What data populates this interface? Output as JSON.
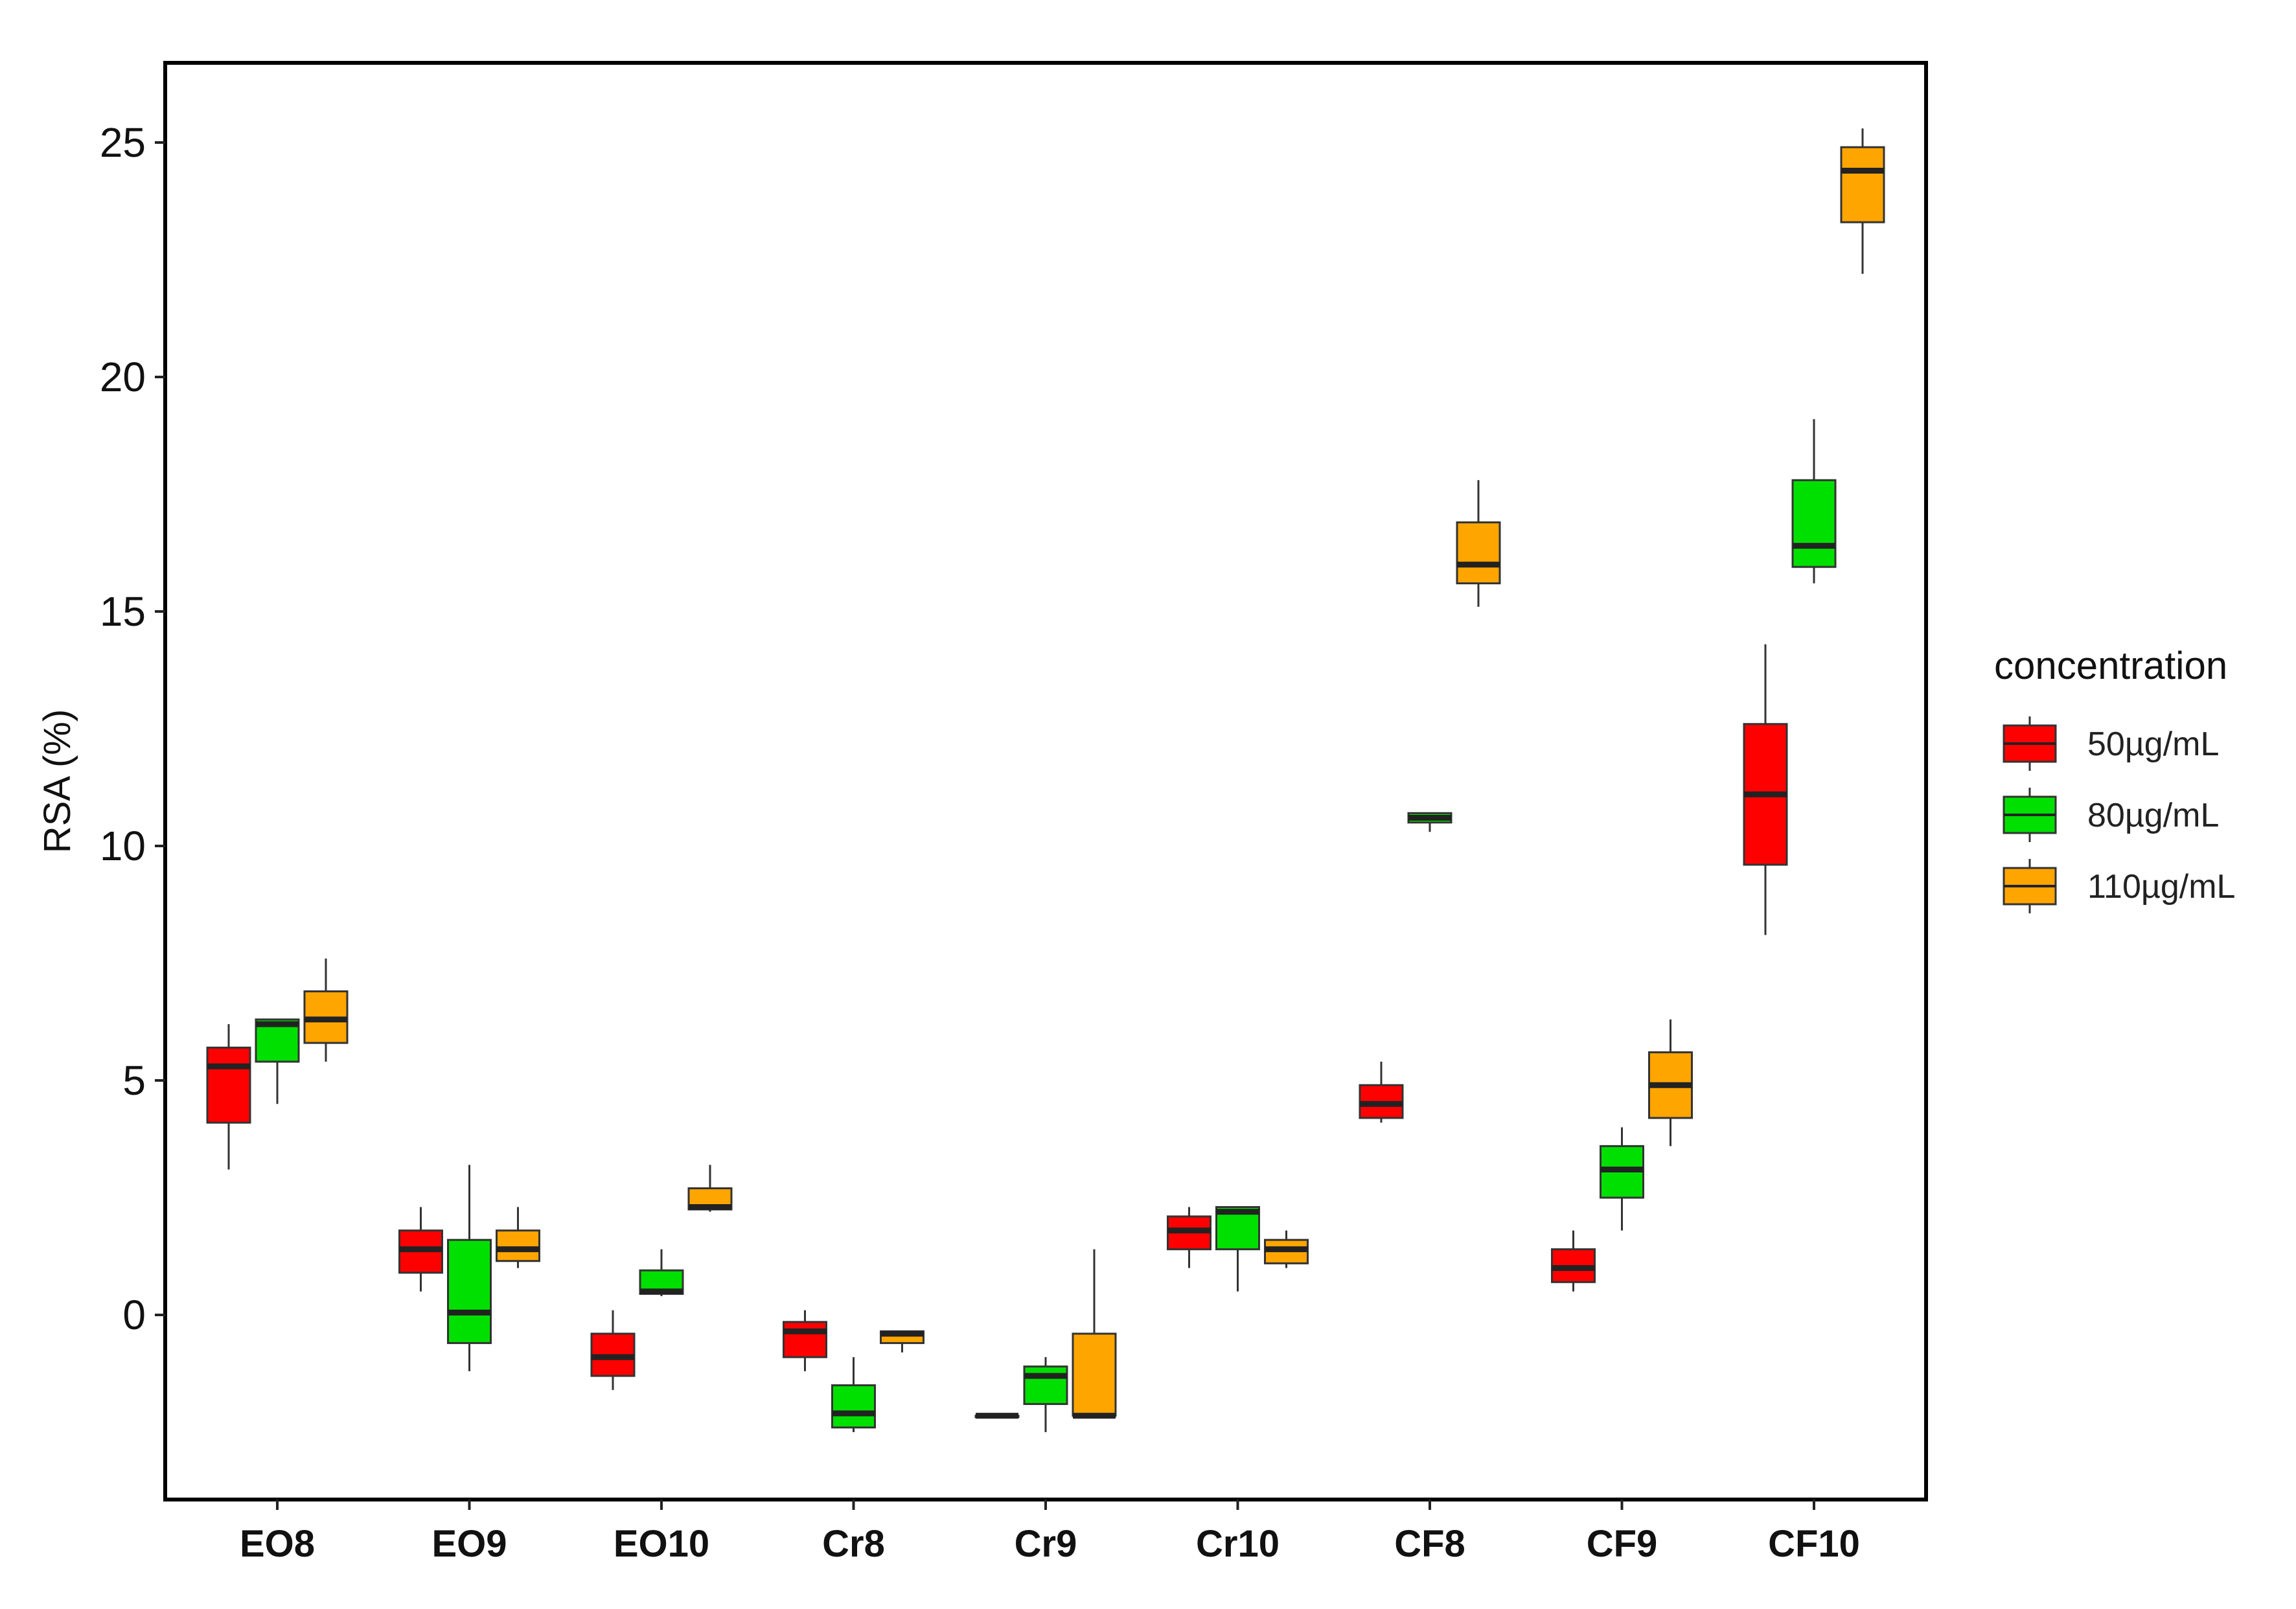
{
  "chart_data": {
    "type": "box",
    "title": "",
    "xlabel": "",
    "ylabel": "RSA (%)",
    "ylim": [
      -4,
      26.6
    ],
    "yticks": [
      0,
      5,
      10,
      15,
      20,
      25
    ],
    "grid": false,
    "legend_position": "right",
    "legend_title": "concentration",
    "categories": [
      "EO8",
      "EO9",
      "EO10",
      "Cr8",
      "Cr9",
      "Cr10",
      "CF8",
      "CF9",
      "CF10"
    ],
    "series": [
      {
        "name": "50µg/mL",
        "color": "#FF0000",
        "boxes": [
          {
            "min": 3.1,
            "q1": 4.1,
            "median": 5.3,
            "q3": 5.7,
            "max": 6.2
          },
          {
            "min": 0.5,
            "q1": 0.9,
            "median": 1.4,
            "q3": 1.8,
            "max": 2.3
          },
          {
            "min": -1.6,
            "q1": -1.3,
            "median": -0.9,
            "q3": -0.4,
            "max": 0.1
          },
          {
            "min": -1.2,
            "q1": -0.9,
            "median": -0.35,
            "q3": -0.15,
            "max": 0.1
          },
          {
            "min": -2.15,
            "q1": -2.15,
            "median": -2.15,
            "q3": -2.15,
            "max": -2.15
          },
          {
            "min": 1.0,
            "q1": 1.4,
            "median": 1.8,
            "q3": 2.1,
            "max": 2.3
          },
          {
            "min": 4.1,
            "q1": 4.2,
            "median": 4.5,
            "q3": 4.9,
            "max": 5.4
          },
          {
            "min": 0.5,
            "q1": 0.7,
            "median": 1.0,
            "q3": 1.4,
            "max": 1.8
          },
          {
            "min": 8.1,
            "q1": 9.6,
            "median": 11.1,
            "q3": 12.6,
            "max": 14.3
          }
        ]
      },
      {
        "name": "80µg/mL",
        "color": "#00E000",
        "boxes": [
          {
            "min": 4.5,
            "q1": 5.4,
            "median": 6.2,
            "q3": 6.3,
            "max": 6.3
          },
          {
            "min": -1.2,
            "q1": -0.6,
            "median": 0.05,
            "q3": 1.6,
            "max": 3.2
          },
          {
            "min": 0.4,
            "q1": 0.45,
            "median": 0.5,
            "q3": 0.95,
            "max": 1.4
          },
          {
            "min": -2.5,
            "q1": -2.4,
            "median": -2.1,
            "q3": -1.5,
            "max": -0.9
          },
          {
            "min": -2.5,
            "q1": -1.9,
            "median": -1.3,
            "q3": -1.1,
            "max": -0.9
          },
          {
            "min": 0.5,
            "q1": 1.4,
            "median": 2.2,
            "q3": 2.3,
            "max": 2.3
          },
          {
            "min": 10.3,
            "q1": 10.5,
            "median": 10.6,
            "q3": 10.7,
            "max": 10.7
          },
          {
            "min": 1.8,
            "q1": 2.5,
            "median": 3.1,
            "q3": 3.6,
            "max": 4.0
          },
          {
            "min": 15.6,
            "q1": 15.95,
            "median": 16.4,
            "q3": 17.8,
            "max": 19.1
          }
        ]
      },
      {
        "name": "110µg/mL",
        "color": "#FFA500",
        "boxes": [
          {
            "min": 5.4,
            "q1": 5.8,
            "median": 6.3,
            "q3": 6.9,
            "max": 7.6
          },
          {
            "min": 1.0,
            "q1": 1.15,
            "median": 1.4,
            "q3": 1.8,
            "max": 2.3
          },
          {
            "min": 2.2,
            "q1": 2.25,
            "median": 2.3,
            "q3": 2.7,
            "max": 3.2
          },
          {
            "min": -0.8,
            "q1": -0.6,
            "median": -0.4,
            "q3": -0.35,
            "max": -0.35
          },
          {
            "min": -2.15,
            "q1": -2.15,
            "median": -2.15,
            "q3": -0.4,
            "max": 1.4
          },
          {
            "min": 1.0,
            "q1": 1.1,
            "median": 1.4,
            "q3": 1.6,
            "max": 1.8
          },
          {
            "min": 15.1,
            "q1": 15.6,
            "median": 16.0,
            "q3": 16.9,
            "max": 17.8
          },
          {
            "min": 3.6,
            "q1": 4.2,
            "median": 4.9,
            "q3": 5.6,
            "max": 6.3
          },
          {
            "min": 22.2,
            "q1": 23.3,
            "median": 24.4,
            "q3": 24.9,
            "max": 25.3
          }
        ]
      }
    ]
  }
}
